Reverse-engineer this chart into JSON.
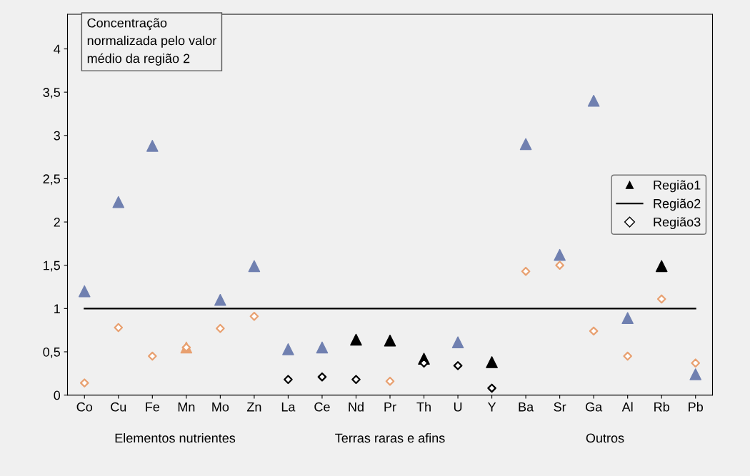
{
  "chart_data": {
    "type": "scatter",
    "categories": [
      "Co",
      "Cu",
      "Fe",
      "Mn",
      "Mo",
      "Zn",
      "La",
      "Ce",
      "Nd",
      "Pr",
      "Th",
      "U",
      "Y",
      "Ba",
      "Sr",
      "Ga",
      "Al",
      "Rb",
      "Pb"
    ],
    "series": [
      {
        "name": "Região1",
        "marker": "triangle",
        "color": "#000000",
        "colors": [
          "#7080b0",
          "#7080b0",
          "#7080b0",
          "#e8a070",
          "#7080b0",
          "#7080b0",
          "#7080b0",
          "#7080b0",
          "#000000",
          "#000000",
          "#000000",
          "#7080b0",
          "#000000",
          "#7080b0",
          "#7080b0",
          "#7080b0",
          "#7080b0",
          "#000000",
          "#7080b0"
        ],
        "values": [
          1.2,
          2.23,
          2.88,
          0.55,
          1.1,
          1.49,
          0.53,
          0.55,
          0.64,
          0.63,
          0.42,
          0.61,
          0.38,
          2.9,
          1.62,
          3.4,
          0.89,
          1.49,
          0.24
        ]
      },
      {
        "name": "Região2",
        "type": "line",
        "marker": "none",
        "color": "#000000",
        "values": [
          1,
          1,
          1,
          1,
          1,
          1,
          1,
          1,
          1,
          1,
          1,
          1,
          1,
          1,
          1,
          1,
          1,
          1,
          1
        ]
      },
      {
        "name": "Região3",
        "marker": "diamond",
        "color": "#000000",
        "colors": [
          "#e8a070",
          "#e8a070",
          "#e8a070",
          "#e8a070",
          "#e8a070",
          "#e8a070",
          "#000000",
          "#000000",
          "#000000",
          "#e8a070",
          "#000000",
          "#000000",
          "#000000",
          "#e8a070",
          "#e8a070",
          "#e8a070",
          "#e8a070",
          "#e8a070",
          "#e8a070"
        ],
        "values": [
          0.14,
          0.78,
          0.45,
          0.55,
          0.77,
          0.91,
          0.18,
          0.21,
          0.18,
          0.16,
          0.37,
          0.34,
          0.08,
          1.43,
          1.5,
          0.74,
          0.45,
          1.11,
          0.37
        ]
      }
    ],
    "ylim": [
      0,
      4.4
    ],
    "yticks": [
      0,
      {
        "value": 0.5,
        "label": "0,5"
      },
      1,
      {
        "value": 1.5,
        "label": "1,5"
      },
      2,
      {
        "value": 2.5,
        "label": "2,5"
      },
      3,
      {
        "value": 3.5,
        "label": "3,5"
      },
      4
    ],
    "legend": "right",
    "grid": false,
    "annotations": [
      "Concentração\nnormalizada pelo valor\nmédio da região 2",
      "Elementos nutrientes",
      "Terras raras e afins",
      "Outros"
    ]
  }
}
